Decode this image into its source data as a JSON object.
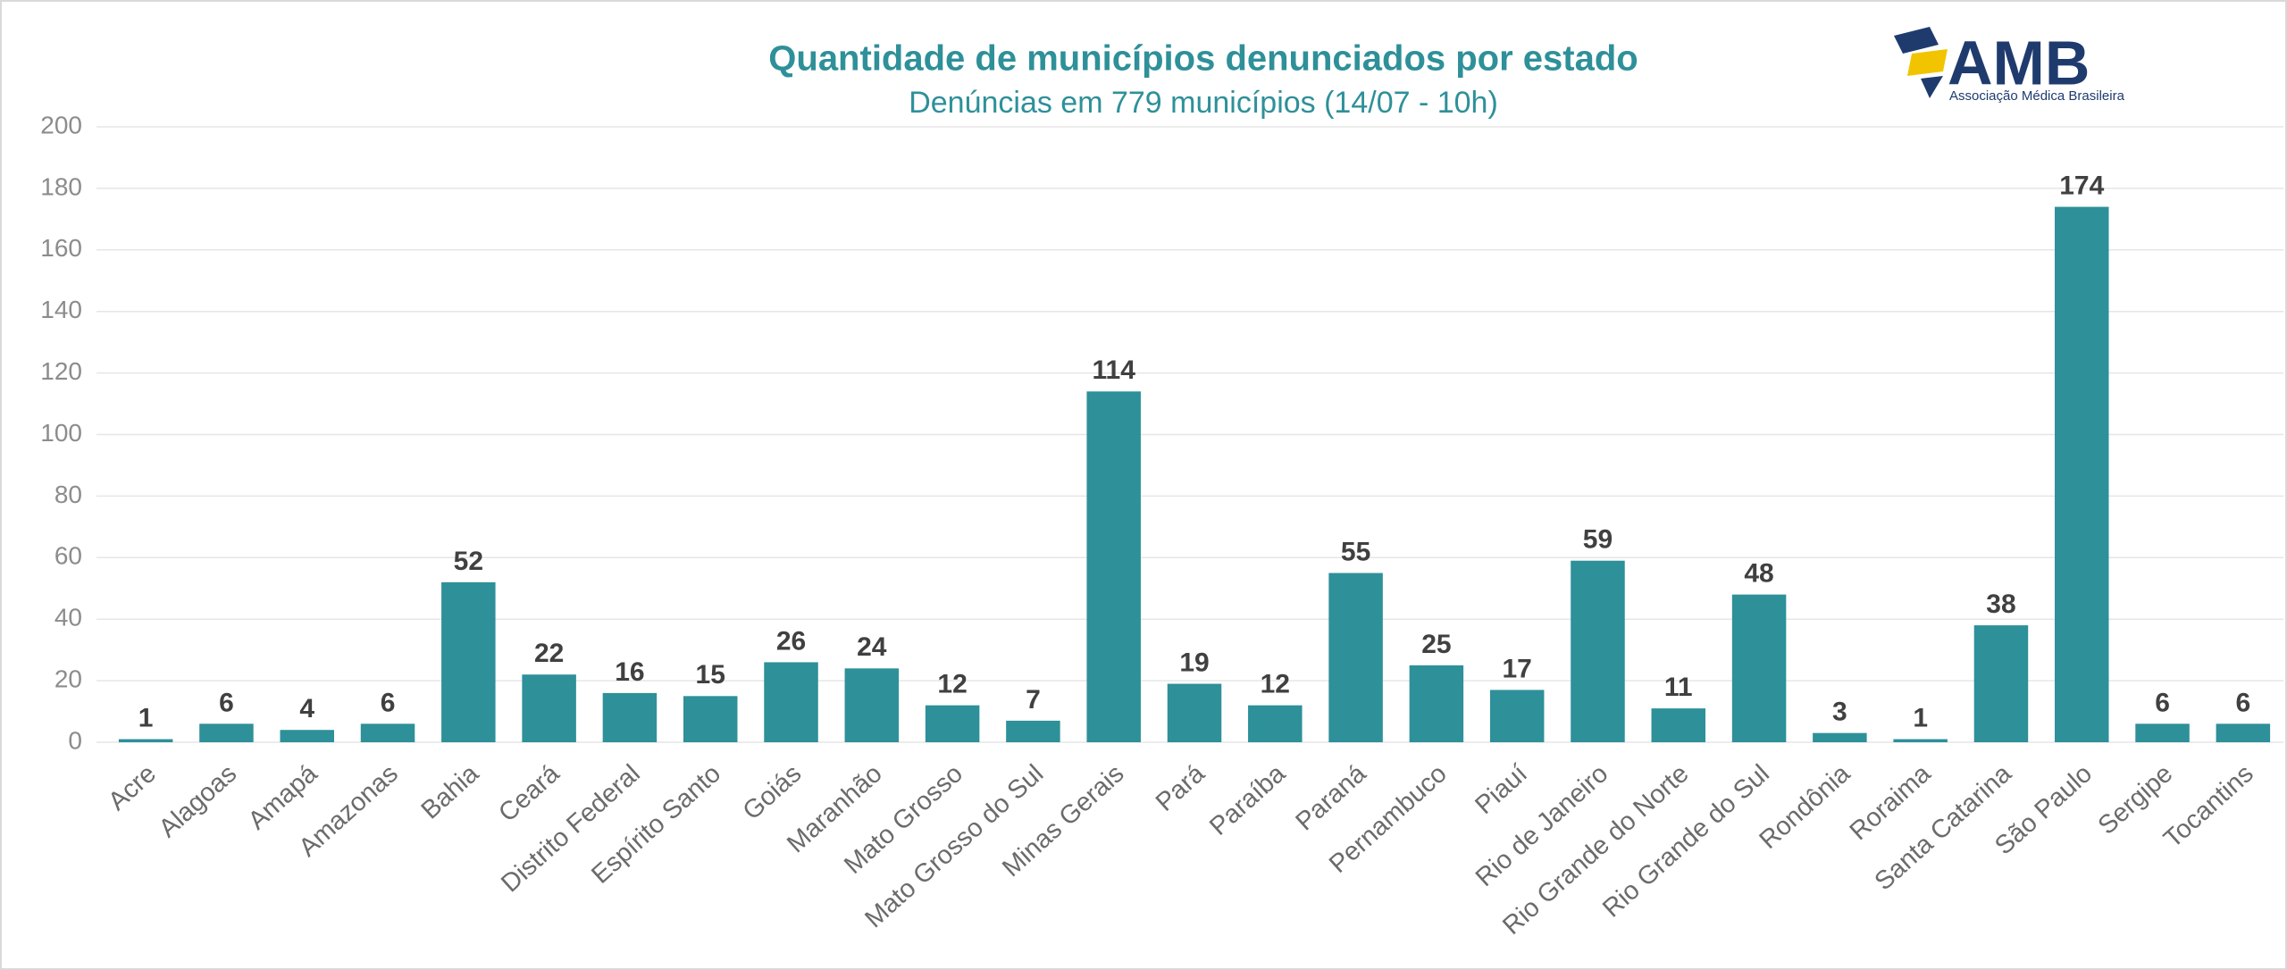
{
  "chart_data": {
    "type": "bar",
    "title": "Quantidade de municípios denunciados por estado",
    "subtitle": "Denúncias em 779 municípios (14/07 - 10h)",
    "logo": {
      "text": "AMB",
      "caption": "Associação Médica Brasileira"
    },
    "categories": [
      "Acre",
      "Alagoas",
      "Amapá",
      "Amazonas",
      "Bahia",
      "Ceará",
      "Distrito Federal",
      "Espírito Santo",
      "Goiás",
      "Maranhão",
      "Mato Grosso",
      "Mato Grosso do Sul",
      "Minas Gerais",
      "Pará",
      "Paraíba",
      "Paraná",
      "Pernambuco",
      "Piauí",
      "Rio de Janeiro",
      "Rio Grande do Norte",
      "Rio Grande do Sul",
      "Rondônia",
      "Roraima",
      "Santa Catarina",
      "São Paulo",
      "Sergipe",
      "Tocantins"
    ],
    "values": [
      1,
      6,
      4,
      6,
      52,
      22,
      16,
      15,
      26,
      24,
      12,
      7,
      114,
      19,
      12,
      55,
      25,
      17,
      59,
      11,
      48,
      3,
      1,
      38,
      174,
      6,
      6
    ],
    "color": "#2e9099",
    "ylim": [
      0,
      200
    ],
    "yticks": [
      0,
      20,
      40,
      60,
      80,
      100,
      120,
      140,
      160,
      180,
      200
    ],
    "grid": true
  }
}
